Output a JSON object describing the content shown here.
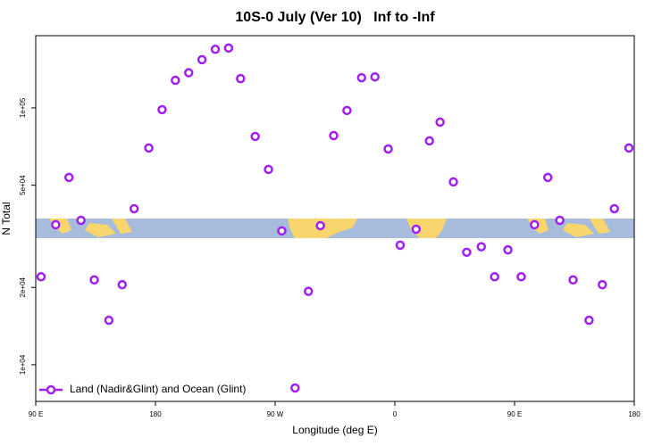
{
  "chart_data": {
    "type": "scatter",
    "title": "10S-0 July (Ver 10)   Inf to -Inf",
    "x_label": "Longitude (deg E)",
    "y_label": "N Total",
    "log_y": true,
    "legend_position": "bottom-left",
    "xlim": [
      90,
      540
    ],
    "ylim": [
      7200,
      191000
    ],
    "xticks": [
      {
        "value": 90,
        "label": "90 E"
      },
      180,
      {
        "value": 270,
        "label": "90 W"
      },
      {
        "value": 360,
        "label": "0"
      },
      {
        "value": 450,
        "label": "90 E"
      },
      {
        "value": 540,
        "label": "180"
      }
    ],
    "yticks": [
      {
        "value": 10000,
        "label": "1e+04"
      },
      {
        "value": 20000,
        "label": "2e+04"
      },
      {
        "value": 50000,
        "label": "5e+04"
      },
      {
        "value": 100000,
        "label": "1e+05"
      }
    ],
    "series": [
      {
        "name": "Land (Nadir&Glint) and Ocean (Glint)",
        "color": "#a020f0",
        "x": [
          94,
          105,
          115,
          124,
          134,
          145,
          155,
          164,
          175,
          185,
          195,
          205,
          215,
          225,
          235,
          244,
          255,
          265,
          275,
          285,
          295,
          304,
          314,
          324,
          335,
          345,
          355,
          364,
          376,
          386,
          394,
          404,
          414,
          425,
          435,
          445,
          455,
          465,
          475,
          484,
          494,
          506,
          516,
          525,
          536
        ],
        "values": [
          22000,
          35100,
          53600,
          36500,
          21400,
          14900,
          20500,
          40500,
          69800,
          98400,
          128000,
          137000,
          154000,
          169000,
          171000,
          130000,
          77400,
          57600,
          33200,
          8120,
          19300,
          34800,
          78000,
          97700,
          131000,
          132000,
          69200,
          29200,
          33700,
          74400,
          88000,
          51500,
          27400,
          28800,
          22000,
          28000,
          22000,
          35100,
          53600,
          36500,
          21400,
          14900,
          20500,
          40500,
          69800
        ]
      }
    ]
  }
}
